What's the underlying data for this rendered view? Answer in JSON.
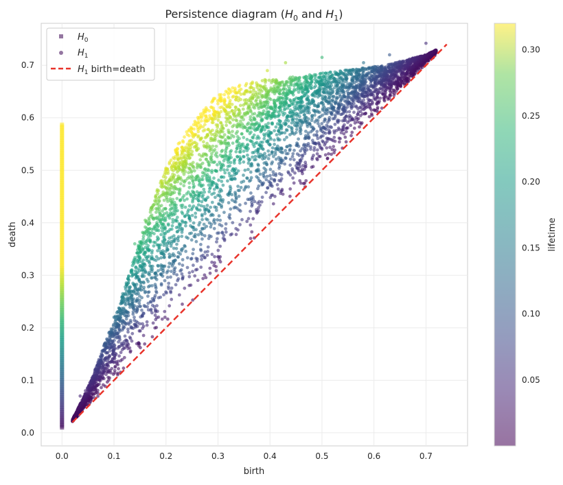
{
  "chart_data": {
    "type": "scatter",
    "title_main": "Persistence diagram (",
    "title_h0_letter": "H",
    "title_h0_sub": "0",
    "title_and": " and ",
    "title_h1_letter": "H",
    "title_h1_sub": "1",
    "title_close": ")",
    "xlabel": "birth",
    "ylabel": "death",
    "xlim": [
      -0.04,
      0.78
    ],
    "ylim": [
      -0.025,
      0.78
    ],
    "xticks": [
      0.0,
      0.1,
      0.2,
      0.3,
      0.4,
      0.5,
      0.6,
      0.7
    ],
    "yticks": [
      0.0,
      0.1,
      0.2,
      0.3,
      0.4,
      0.5,
      0.6,
      0.7
    ],
    "grid": true,
    "legend": {
      "placement": "top-left",
      "entries": [
        {
          "marker": "square",
          "letter": "H",
          "sub": "0",
          "suffix": ""
        },
        {
          "marker": "circle",
          "letter": "H",
          "sub": "1",
          "suffix": ""
        },
        {
          "marker": "dashed-line",
          "letter": "H",
          "sub": "1",
          "suffix": " birth=death"
        }
      ]
    },
    "colorbar": {
      "label": "lifetime",
      "colormap": "viridis",
      "range": [
        0.0,
        0.32
      ],
      "ticks": [
        0.05,
        0.1,
        0.15,
        0.2,
        0.25,
        0.3
      ],
      "tick_labels": [
        "0.05",
        "0.10",
        "0.15",
        "0.20",
        "0.25",
        "0.30"
      ]
    },
    "series": [
      {
        "name": "H0",
        "marker": "square",
        "birth": 0.0,
        "death_range": [
          0.01,
          0.587
        ],
        "color_by": "lifetime"
      },
      {
        "name": "H1",
        "marker": "circle",
        "color_by": "lifetime",
        "lower_boundary_points": [
          [
            0.02,
            0.022
          ],
          [
            0.1,
            0.1
          ],
          [
            0.3,
            0.3
          ],
          [
            0.5,
            0.5
          ],
          [
            0.7,
            0.7
          ]
        ],
        "upper_envelope": [
          [
            0.02,
            0.025
          ],
          [
            0.04,
            0.065
          ],
          [
            0.06,
            0.11
          ],
          [
            0.08,
            0.165
          ],
          [
            0.1,
            0.215
          ],
          [
            0.12,
            0.275
          ],
          [
            0.14,
            0.335
          ],
          [
            0.16,
            0.4
          ],
          [
            0.18,
            0.455
          ],
          [
            0.2,
            0.505
          ],
          [
            0.22,
            0.545
          ],
          [
            0.24,
            0.575
          ],
          [
            0.26,
            0.6
          ],
          [
            0.28,
            0.625
          ],
          [
            0.3,
            0.645
          ],
          [
            0.32,
            0.655
          ],
          [
            0.35,
            0.665
          ],
          [
            0.38,
            0.672
          ],
          [
            0.42,
            0.675
          ],
          [
            0.46,
            0.68
          ],
          [
            0.5,
            0.685
          ],
          [
            0.54,
            0.69
          ],
          [
            0.58,
            0.695
          ],
          [
            0.62,
            0.7
          ],
          [
            0.66,
            0.71
          ],
          [
            0.7,
            0.72
          ],
          [
            0.74,
            0.74
          ]
        ],
        "outliers": [
          [
            0.43,
            0.705
          ],
          [
            0.5,
            0.715
          ],
          [
            0.63,
            0.72
          ],
          [
            0.7,
            0.742
          ],
          [
            0.58,
            0.705
          ],
          [
            0.32,
            0.645
          ],
          [
            0.29,
            0.632
          ],
          [
            0.355,
            0.665
          ],
          [
            0.395,
            0.69
          ],
          [
            0.14,
            0.36
          ],
          [
            0.16,
            0.405
          ],
          [
            0.1,
            0.22
          ],
          [
            0.07,
            0.13
          ],
          [
            0.035,
            0.07
          ],
          [
            0.045,
            0.08
          ]
        ]
      },
      {
        "name": "H1 birth=death",
        "type": "line",
        "style": "dashed",
        "color": "#e8332a",
        "points": [
          [
            0.02,
            0.02
          ],
          [
            0.74,
            0.74
          ]
        ]
      }
    ]
  }
}
